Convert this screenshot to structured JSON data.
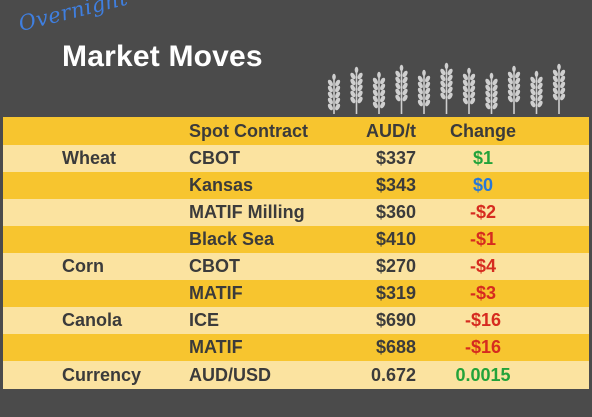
{
  "header": {
    "script_title": "Overnight",
    "main_title": "Market Moves"
  },
  "table": {
    "columns": [
      "Spot Contract",
      "AUD/t",
      "Change"
    ],
    "rows": [
      {
        "category": "Wheat",
        "contract": "CBOT",
        "price": "$337",
        "change": "$1",
        "trend": "up"
      },
      {
        "category": "",
        "contract": "Kansas",
        "price": "$343",
        "change": "$0",
        "trend": "flat"
      },
      {
        "category": "",
        "contract": "MATIF Milling",
        "price": "$360",
        "change": "-$2",
        "trend": "down"
      },
      {
        "category": "",
        "contract": "Black Sea",
        "price": "$410",
        "change": "-$1",
        "trend": "down"
      },
      {
        "category": "Corn",
        "contract": "CBOT",
        "price": "$270",
        "change": "-$4",
        "trend": "down"
      },
      {
        "category": "",
        "contract": "MATIF",
        "price": "$319",
        "change": "-$3",
        "trend": "down"
      },
      {
        "category": "Canola",
        "contract": "ICE",
        "price": "$690",
        "change": "-$16",
        "trend": "down"
      },
      {
        "category": "",
        "contract": "MATIF",
        "price": "$688",
        "change": "-$16",
        "trend": "down"
      },
      {
        "category": "Currency",
        "contract": "AUD/USD",
        "price": "0.672",
        "change": "0.0015",
        "trend": "up"
      }
    ]
  },
  "colors": {
    "background": "#4b4b4b",
    "row_dark": "#f7c52f",
    "row_light": "#fbe3a0",
    "up": "#23a33a",
    "flat": "#2878d8",
    "down": "#d62b1f",
    "script_title": "#3f7fe0"
  },
  "icons": [
    "wheat-stalks-icon"
  ]
}
